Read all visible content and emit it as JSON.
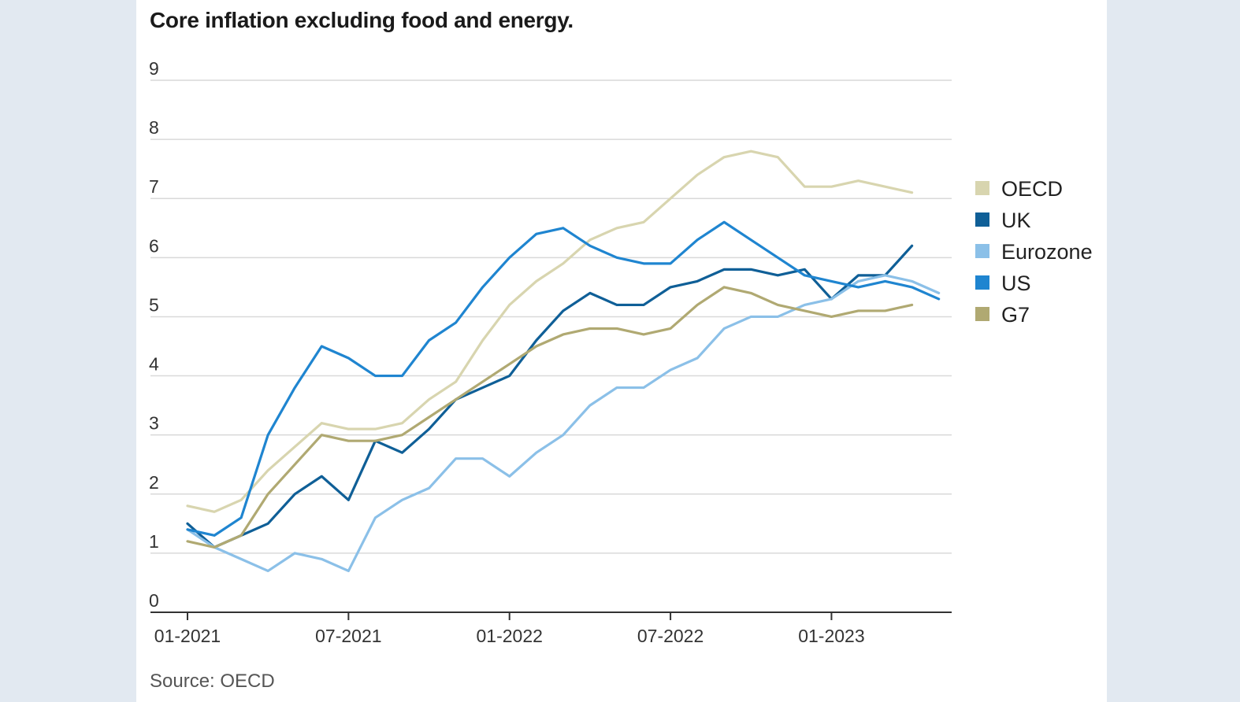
{
  "chart_data": {
    "type": "line",
    "title": "Core inflation excluding food and energy.",
    "source": "Source: OECD",
    "xlabel": "",
    "ylabel": "",
    "ylim": [
      0,
      9
    ],
    "yticks": [
      "0",
      "1",
      "2",
      "3",
      "4",
      "5",
      "6",
      "7",
      "8",
      "9"
    ],
    "x": [
      "01-2021",
      "02-2021",
      "03-2021",
      "04-2021",
      "05-2021",
      "06-2021",
      "07-2021",
      "08-2021",
      "09-2021",
      "10-2021",
      "11-2021",
      "12-2021",
      "01-2022",
      "02-2022",
      "03-2022",
      "04-2022",
      "05-2022",
      "06-2022",
      "07-2022",
      "08-2022",
      "09-2022",
      "10-2022",
      "11-2022",
      "12-2022",
      "01-2023",
      "02-2023",
      "03-2023",
      "04-2023",
      "05-2023"
    ],
    "xticks": [
      "01-2021",
      "07-2021",
      "01-2022",
      "07-2022",
      "01-2023"
    ],
    "legend_position": "right",
    "series": [
      {
        "name": "OECD",
        "color": "#d8d5af",
        "values": [
          1.8,
          1.7,
          1.9,
          2.4,
          2.8,
          3.2,
          3.1,
          3.1,
          3.2,
          3.6,
          3.9,
          4.6,
          5.2,
          5.6,
          5.9,
          6.3,
          6.5,
          6.6,
          7.0,
          7.4,
          7.7,
          7.8,
          7.7,
          7.2,
          7.2,
          7.3,
          7.2,
          7.1,
          null
        ]
      },
      {
        "name": "UK",
        "color": "#0f5f97",
        "values": [
          1.5,
          1.1,
          1.3,
          1.5,
          2.0,
          2.3,
          1.9,
          2.9,
          2.7,
          3.1,
          3.6,
          3.8,
          4.0,
          4.6,
          5.1,
          5.4,
          5.2,
          5.2,
          5.5,
          5.6,
          5.8,
          5.8,
          5.7,
          5.8,
          5.3,
          5.7,
          5.7,
          6.2,
          null
        ]
      },
      {
        "name": "Eurozone",
        "color": "#8bc0e8",
        "values": [
          1.4,
          1.1,
          0.9,
          0.7,
          1.0,
          0.9,
          0.7,
          1.6,
          1.9,
          2.1,
          2.6,
          2.6,
          2.3,
          2.7,
          3.0,
          3.5,
          3.8,
          3.8,
          4.1,
          4.3,
          4.8,
          5.0,
          5.0,
          5.2,
          5.3,
          5.6,
          5.7,
          5.6,
          5.4
        ]
      },
      {
        "name": "US",
        "color": "#1f85d0",
        "values": [
          1.4,
          1.3,
          1.6,
          3.0,
          3.8,
          4.5,
          4.3,
          4.0,
          4.0,
          4.6,
          4.9,
          5.5,
          6.0,
          6.4,
          6.5,
          6.2,
          6.0,
          5.9,
          5.9,
          6.3,
          6.6,
          6.3,
          6.0,
          5.7,
          5.6,
          5.5,
          5.6,
          5.5,
          5.3
        ]
      },
      {
        "name": "G7",
        "color": "#b0a972",
        "values": [
          1.2,
          1.1,
          1.3,
          2.0,
          2.5,
          3.0,
          2.9,
          2.9,
          3.0,
          3.3,
          3.6,
          3.9,
          4.2,
          4.5,
          4.7,
          4.8,
          4.8,
          4.7,
          4.8,
          5.2,
          5.5,
          5.4,
          5.2,
          5.1,
          5.0,
          5.1,
          5.1,
          5.2,
          null
        ]
      }
    ]
  }
}
